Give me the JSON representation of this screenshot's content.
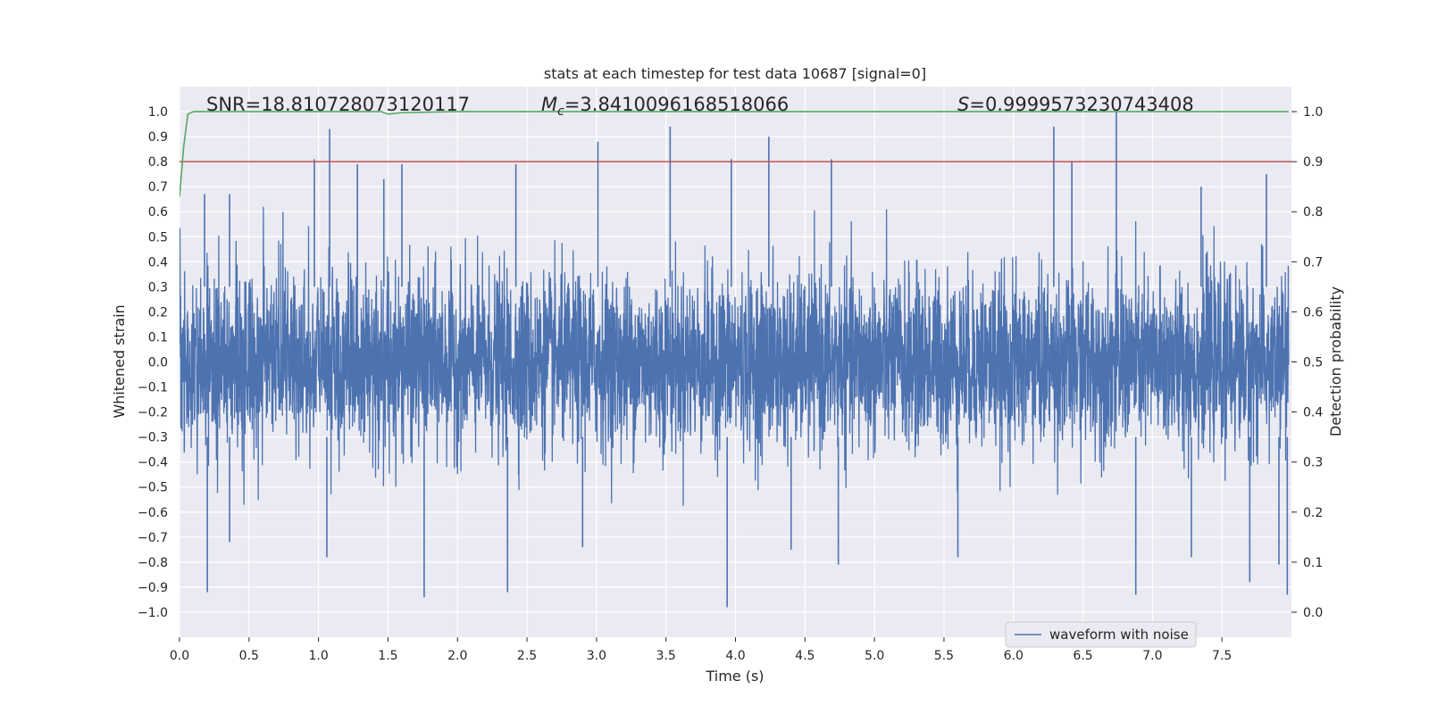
{
  "chart_data": {
    "type": "line",
    "title": "stats at each timestep for test data 10687 [signal=0]",
    "xlabel": "Time (s)",
    "ylabel": "Whitened strain",
    "y2label": "Detection probability",
    "xlim": [
      0.0,
      8.0
    ],
    "ylim": [
      -1.1,
      1.1
    ],
    "y2lim": [
      -0.05,
      1.05
    ],
    "x_ticks": [
      0.0,
      0.5,
      1.0,
      1.5,
      2.0,
      2.5,
      3.0,
      3.5,
      4.0,
      4.5,
      5.0,
      5.5,
      6.0,
      6.5,
      7.0,
      7.5
    ],
    "x_tick_labels": [
      "0.0",
      "0.5",
      "1.0",
      "1.5",
      "2.0",
      "2.5",
      "3.0",
      "3.5",
      "4.0",
      "4.5",
      "5.0",
      "5.5",
      "6.0",
      "6.5",
      "7.0",
      "7.5"
    ],
    "y_ticks": [
      -1.0,
      -0.9,
      -0.8,
      -0.7,
      -0.6,
      -0.5,
      -0.4,
      -0.3,
      -0.2,
      -0.1,
      0.0,
      0.1,
      0.2,
      0.3,
      0.4,
      0.5,
      0.6,
      0.7,
      0.8,
      0.9,
      1.0
    ],
    "y_tick_labels": [
      "−1.0",
      "−0.9",
      "−0.8",
      "−0.7",
      "−0.6",
      "−0.5",
      "−0.4",
      "−0.3",
      "−0.2",
      "−0.1",
      "0.0",
      "0.1",
      "0.2",
      "0.3",
      "0.4",
      "0.5",
      "0.6",
      "0.7",
      "0.8",
      "0.9",
      "1.0"
    ],
    "y2_ticks": [
      0.0,
      0.1,
      0.2,
      0.3,
      0.4,
      0.5,
      0.6,
      0.7,
      0.8,
      0.9,
      1.0
    ],
    "y2_tick_labels": [
      "0.0",
      "0.1",
      "0.2",
      "0.3",
      "0.4",
      "0.5",
      "0.6",
      "0.7",
      "0.8",
      "0.9",
      "1.0"
    ],
    "grid": true,
    "annotations": {
      "snr": "SNR=18.810728073120117",
      "mc_symbol": "M",
      "mc_sub": "c",
      "mc_value": "=3.8410096168518066",
      "s_symbol": "S",
      "s_value": "=0.9999573230743408"
    },
    "threshold": {
      "value": 0.9,
      "axis": "y2",
      "color": "#c44e52"
    },
    "series": [
      {
        "name": "waveform with noise",
        "axis": "y",
        "color": "#4c72b0",
        "kind": "noise",
        "duration": 7.98,
        "typical_envelope": [
          -0.4,
          0.4
        ],
        "upper_peaks": [
          {
            "x": 0.18,
            "y": 0.67
          },
          {
            "x": 0.36,
            "y": 0.67
          },
          {
            "x": 0.97,
            "y": 0.81
          },
          {
            "x": 1.08,
            "y": 0.93
          },
          {
            "x": 1.28,
            "y": 0.79
          },
          {
            "x": 1.47,
            "y": 0.73
          },
          {
            "x": 1.6,
            "y": 0.79
          },
          {
            "x": 2.42,
            "y": 0.79
          },
          {
            "x": 3.01,
            "y": 0.88
          },
          {
            "x": 3.53,
            "y": 0.94
          },
          {
            "x": 3.97,
            "y": 0.81
          },
          {
            "x": 4.24,
            "y": 0.9
          },
          {
            "x": 4.69,
            "y": 0.81
          },
          {
            "x": 6.29,
            "y": 0.94
          },
          {
            "x": 6.42,
            "y": 0.8
          },
          {
            "x": 6.74,
            "y": 1.0
          },
          {
            "x": 7.35,
            "y": 0.7
          },
          {
            "x": 7.82,
            "y": 0.75
          }
        ],
        "lower_peaks": [
          {
            "x": 0.2,
            "y": -0.92
          },
          {
            "x": 0.36,
            "y": -0.72
          },
          {
            "x": 1.06,
            "y": -0.78
          },
          {
            "x": 1.76,
            "y": -0.94
          },
          {
            "x": 2.36,
            "y": -0.92
          },
          {
            "x": 2.9,
            "y": -0.74
          },
          {
            "x": 3.94,
            "y": -0.98
          },
          {
            "x": 4.4,
            "y": -0.75
          },
          {
            "x": 4.74,
            "y": -0.81
          },
          {
            "x": 5.6,
            "y": -0.78
          },
          {
            "x": 6.88,
            "y": -0.93
          },
          {
            "x": 7.28,
            "y": -0.78
          },
          {
            "x": 7.7,
            "y": -0.88
          },
          {
            "x": 7.91,
            "y": -0.81
          },
          {
            "x": 7.97,
            "y": -0.93
          }
        ]
      },
      {
        "name": "detection probability",
        "axis": "y2",
        "color": "#55a868",
        "x": [
          0.0,
          0.03,
          0.06,
          0.1,
          0.15,
          0.5,
          1.0,
          1.45,
          1.5,
          1.6,
          2.0,
          3.0,
          4.0,
          5.0,
          6.0,
          7.0,
          7.98
        ],
        "y": [
          0.83,
          0.93,
          0.995,
          1.0,
          1.0,
          1.0,
          1.0,
          1.0,
          0.995,
          0.998,
          1.0,
          1.0,
          1.0,
          1.0,
          1.0,
          1.0,
          1.0
        ]
      }
    ],
    "legend": {
      "placement": "lower-right",
      "entries": [
        "waveform with noise"
      ]
    }
  }
}
